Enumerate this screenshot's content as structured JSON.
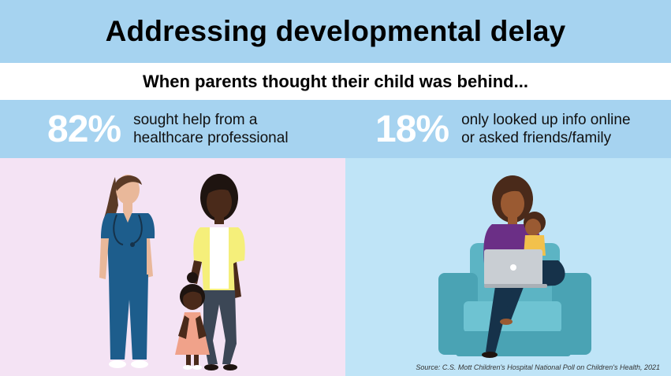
{
  "title": "Addressing developmental delay",
  "subtitle": "When parents thought their child was behind...",
  "stats": [
    {
      "percent": "82%",
      "line1": "sought help from a",
      "line2": "healthcare professional"
    },
    {
      "percent": "18%",
      "line1": "only looked up info online",
      "line2": "or asked friends/family"
    }
  ],
  "source": "Source: C.S. Mott Children's Hospital National Poll on Children's Health, 2021",
  "colors": {
    "band_blue": "#a6d3f0",
    "panel_left": "#f4e3f4",
    "panel_right": "#bfe4f7",
    "percent_text": "#ffffff"
  },
  "illustrations": {
    "left": [
      "doctor-illustration",
      "parent-illustration",
      "child-illustration"
    ],
    "right": [
      "parent-on-armchair-illustration",
      "laptop-icon"
    ]
  }
}
